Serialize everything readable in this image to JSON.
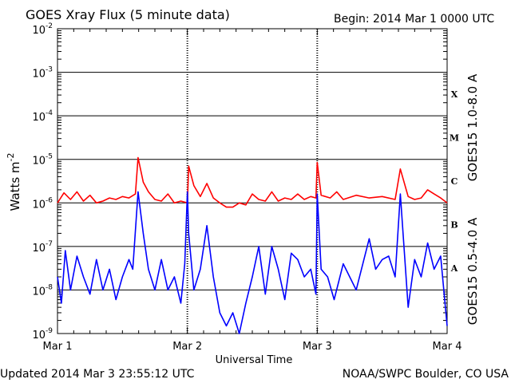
{
  "header": {
    "title": "GOES Xray Flux (5 minute data)",
    "begin": "Begin:  2014 Mar 1 0000 UTC"
  },
  "footer": {
    "updated": "Updated 2014 Mar  3 23:55:12 UTC",
    "credit": "NOAA/SWPC Boulder, CO USA"
  },
  "colors": {
    "long_channel": "#ff0000",
    "short_channel": "#0000ff",
    "grid": "#000000"
  },
  "chart_data": {
    "type": "line",
    "title": "GOES Xray Flux (5 minute data)",
    "xlabel": "Universal Time",
    "ylabel": "Watts m",
    "ylabel_exponent": "-2",
    "y_scale": "log",
    "ylim": [
      1e-09,
      0.01
    ],
    "xlim_days": [
      0,
      3
    ],
    "x_ticks": [
      "Mar 1",
      "Mar 2",
      "Mar 3",
      "Mar 4"
    ],
    "y_ticks": [
      {
        "base": "10",
        "exp": "-9",
        "value": 1e-09
      },
      {
        "base": "10",
        "exp": "-8",
        "value": 1e-08
      },
      {
        "base": "10",
        "exp": "-7",
        "value": 1e-07
      },
      {
        "base": "10",
        "exp": "-6",
        "value": 1e-06
      },
      {
        "base": "10",
        "exp": "-5",
        "value": 1e-05
      },
      {
        "base": "10",
        "exp": "-4",
        "value": 0.0001
      },
      {
        "base": "10",
        "exp": "-3",
        "value": 0.001
      },
      {
        "base": "10",
        "exp": "-2",
        "value": 0.01
      }
    ],
    "flare_classes": [
      {
        "label": "A",
        "value": 1e-08
      },
      {
        "label": "B",
        "value": 1e-07
      },
      {
        "label": "C",
        "value": 1e-06
      },
      {
        "label": "M",
        "value": 1e-05
      },
      {
        "label": "X",
        "value": 0.0001
      }
    ],
    "series": [
      {
        "name": "GOES15 1.0-8.0 A",
        "color": "#ff0000",
        "x": [
          0.0,
          0.05,
          0.1,
          0.15,
          0.2,
          0.25,
          0.3,
          0.35,
          0.4,
          0.45,
          0.5,
          0.55,
          0.6,
          0.62,
          0.66,
          0.7,
          0.75,
          0.8,
          0.85,
          0.9,
          0.95,
          1.0,
          1.01,
          1.05,
          1.1,
          1.15,
          1.2,
          1.25,
          1.3,
          1.35,
          1.4,
          1.45,
          1.5,
          1.55,
          1.6,
          1.65,
          1.7,
          1.75,
          1.8,
          1.85,
          1.9,
          1.95,
          1.99,
          2.0,
          2.03,
          2.1,
          2.15,
          2.2,
          2.3,
          2.4,
          2.5,
          2.6,
          2.64,
          2.7,
          2.75,
          2.8,
          2.85,
          2.9,
          2.95,
          3.0
        ],
        "y": [
          1e-06,
          1.7e-06,
          1.2e-06,
          1.8e-06,
          1.1e-06,
          1.5e-06,
          1e-06,
          1.1e-06,
          1.3e-06,
          1.2e-06,
          1.4e-06,
          1.3e-06,
          1.6e-06,
          1.1e-05,
          3e-06,
          1.8e-06,
          1.2e-06,
          1.1e-06,
          1.6e-06,
          1e-06,
          1.1e-06,
          1e-06,
          7e-06,
          2.5e-06,
          1.4e-06,
          2.8e-06,
          1.3e-06,
          1e-06,
          8e-07,
          8e-07,
          1e-06,
          9e-07,
          1.6e-06,
          1.2e-06,
          1.1e-06,
          1.8e-06,
          1.1e-06,
          1.3e-06,
          1.2e-06,
          1.6e-06,
          1.2e-06,
          1.4e-06,
          1.3e-06,
          8.5e-06,
          1.5e-06,
          1.3e-06,
          1.8e-06,
          1.2e-06,
          1.5e-06,
          1.3e-06,
          1.4e-06,
          1.2e-06,
          6e-06,
          1.4e-06,
          1.2e-06,
          1.3e-06,
          2e-06,
          1.6e-06,
          1.3e-06,
          1e-06
        ]
      },
      {
        "name": "GOES15 0.5-4.0 A",
        "color": "#0000ff",
        "x": [
          0.0,
          0.03,
          0.06,
          0.1,
          0.15,
          0.2,
          0.25,
          0.3,
          0.35,
          0.4,
          0.45,
          0.5,
          0.55,
          0.58,
          0.62,
          0.66,
          0.7,
          0.75,
          0.8,
          0.85,
          0.9,
          0.95,
          0.98,
          1.0,
          1.01,
          1.05,
          1.1,
          1.15,
          1.2,
          1.25,
          1.3,
          1.35,
          1.4,
          1.45,
          1.5,
          1.55,
          1.6,
          1.65,
          1.7,
          1.75,
          1.8,
          1.85,
          1.9,
          1.95,
          1.99,
          2.0,
          2.03,
          2.08,
          2.13,
          2.2,
          2.3,
          2.4,
          2.45,
          2.5,
          2.55,
          2.6,
          2.64,
          2.7,
          2.75,
          2.8,
          2.85,
          2.9,
          2.95,
          3.0
        ],
        "y": [
          2e-08,
          5e-09,
          8e-08,
          1e-08,
          6e-08,
          2e-08,
          8e-09,
          5e-08,
          1e-08,
          3e-08,
          6e-09,
          2e-08,
          5e-08,
          3e-08,
          1.8e-06,
          2e-07,
          3e-08,
          1e-08,
          5e-08,
          1e-08,
          2e-08,
          5e-09,
          4e-08,
          1.8e-06,
          2e-07,
          1e-08,
          3e-08,
          3e-07,
          2e-08,
          3e-09,
          1.5e-09,
          3e-09,
          1e-09,
          5e-09,
          2e-08,
          1e-07,
          8e-09,
          1e-07,
          3e-08,
          6e-09,
          7e-08,
          5e-08,
          2e-08,
          3e-08,
          8e-09,
          1.6e-06,
          3e-08,
          2e-08,
          6e-09,
          4e-08,
          1e-08,
          1.5e-07,
          3e-08,
          5e-08,
          6e-08,
          2e-08,
          1.6e-06,
          4e-09,
          5e-08,
          2e-08,
          1.2e-07,
          3e-08,
          6e-08,
          1.5e-09
        ]
      }
    ]
  }
}
